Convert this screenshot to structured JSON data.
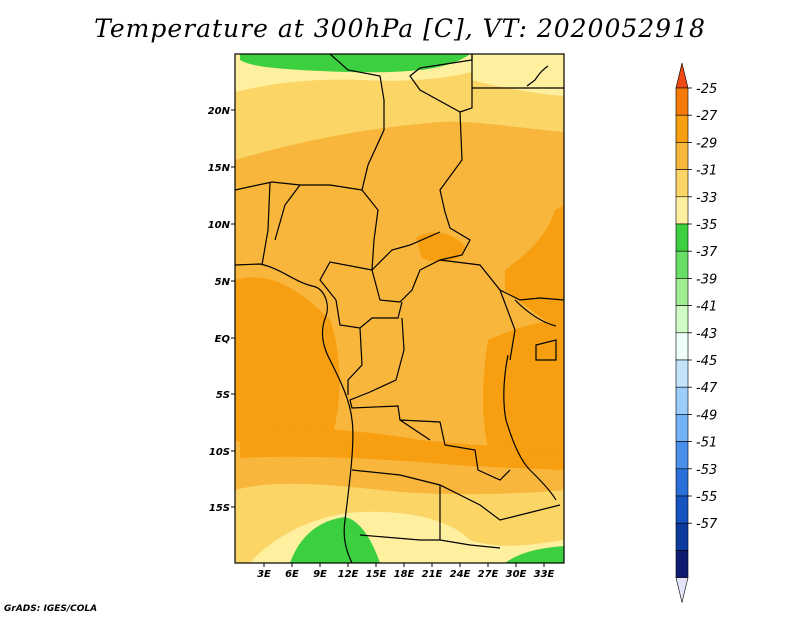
{
  "title": "Temperature at 300hPa [C], VT: 2020052918",
  "credit": "GrADS: IGES/COLA",
  "chart_data": {
    "type": "heatmap",
    "title": "Temperature at 300hPa [C], VT: 2020052918",
    "variable": "Temperature at 300hPa",
    "units": "C",
    "valid_time": "2020052918",
    "lon_ticks": [
      "3E",
      "6E",
      "9E",
      "12E",
      "15E",
      "18E",
      "21E",
      "24E",
      "27E",
      "30E",
      "33E"
    ],
    "lat_ticks": [
      "20N",
      "15N",
      "10N",
      "5N",
      "EQ",
      "5S",
      "10S",
      "15S"
    ],
    "lon_range": [
      0,
      35
    ],
    "lat_range": [
      -20,
      24
    ],
    "colorbar": {
      "levels": [
        "-25",
        "-27",
        "-29",
        "-31",
        "-33",
        "-35",
        "-37",
        "-39",
        "-41",
        "-43",
        "-45",
        "-47",
        "-49",
        "-51",
        "-53",
        "-55",
        "-57"
      ],
      "colors": [
        "#f04a16",
        "#f57a0a",
        "#f79f10",
        "#f9b63c",
        "#fcd567",
        "#fff0a0",
        "#3ccf3f",
        "#68de68",
        "#a0ee92",
        "#d0fbc6",
        "#eefffa",
        "#c4e4fc",
        "#9ccefc",
        "#74b2f6",
        "#4890ea",
        "#2a6fd9",
        "#1553c0",
        "#0d3c9e",
        "#101c70",
        "#e4e4f8"
      ],
      "colors_note": "bands from top arrow (warm) to bottom arrow (cold)"
    }
  }
}
